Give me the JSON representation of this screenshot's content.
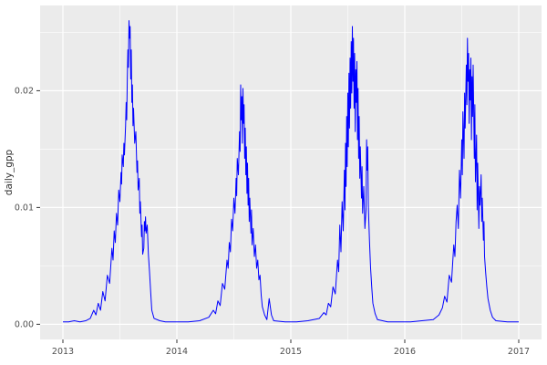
{
  "chart_data": {
    "type": "line",
    "title": "",
    "xlabel": "",
    "ylabel": "daily_gpp",
    "legend": "none",
    "style": "ggplot2",
    "line_color": "#0000FF",
    "panel_bg": "#EBEBEB",
    "grid_major_color": "#FFFFFF",
    "grid_minor_color": "#FFFFFF",
    "axis_text_color": "#4D4D4D",
    "axis_title_color": "#333333",
    "tick_mark_color": "#333333",
    "xlim": [
      2012.8,
      2017.2
    ],
    "ylim": [
      -0.0013,
      0.0273
    ],
    "x_ticks": [
      2013,
      2014,
      2015,
      2016,
      2017
    ],
    "x_tick_labels": [
      "2013",
      "2014",
      "2015",
      "2016",
      "2017"
    ],
    "x_minor": [
      2013.5,
      2014.5,
      2015.5,
      2016.5
    ],
    "y_ticks": [
      0.0,
      0.01,
      0.02
    ],
    "y_tick_labels": [
      "0.00",
      "0.01",
      "0.02"
    ],
    "y_minor": [
      0.005,
      0.015,
      0.025
    ],
    "series": [
      {
        "name": "daily_gpp",
        "points": [
          [
            2013.0,
            0.0002
          ],
          [
            2013.05,
            0.0002
          ],
          [
            2013.1,
            0.0003
          ],
          [
            2013.15,
            0.0002
          ],
          [
            2013.2,
            0.0003
          ],
          [
            2013.24,
            0.0005
          ],
          [
            2013.27,
            0.0012
          ],
          [
            2013.29,
            0.0008
          ],
          [
            2013.31,
            0.0018
          ],
          [
            2013.33,
            0.0012
          ],
          [
            2013.35,
            0.0028
          ],
          [
            2013.37,
            0.002
          ],
          [
            2013.39,
            0.0042
          ],
          [
            2013.41,
            0.0035
          ],
          [
            2013.43,
            0.0065
          ],
          [
            2013.44,
            0.0055
          ],
          [
            2013.45,
            0.008
          ],
          [
            2013.46,
            0.007
          ],
          [
            2013.47,
            0.0095
          ],
          [
            2013.48,
            0.0085
          ],
          [
            2013.49,
            0.0115
          ],
          [
            2013.5,
            0.0105
          ],
          [
            2013.51,
            0.013
          ],
          [
            2013.515,
            0.012
          ],
          [
            2013.52,
            0.0145
          ],
          [
            2013.53,
            0.0135
          ],
          [
            2013.535,
            0.0155
          ],
          [
            2013.54,
            0.0145
          ],
          [
            2013.55,
            0.017
          ],
          [
            2013.555,
            0.019
          ],
          [
            2013.56,
            0.0175
          ],
          [
            2013.565,
            0.021
          ],
          [
            2013.57,
            0.0235
          ],
          [
            2013.575,
            0.022
          ],
          [
            2013.58,
            0.026
          ],
          [
            2013.585,
            0.0245
          ],
          [
            2013.59,
            0.0255
          ],
          [
            2013.595,
            0.021
          ],
          [
            2013.6,
            0.0235
          ],
          [
            2013.605,
            0.019
          ],
          [
            2013.61,
            0.0205
          ],
          [
            2013.615,
            0.017
          ],
          [
            2013.62,
            0.0185
          ],
          [
            2013.63,
            0.0155
          ],
          [
            2013.64,
            0.0165
          ],
          [
            2013.65,
            0.013
          ],
          [
            2013.655,
            0.014
          ],
          [
            2013.66,
            0.0115
          ],
          [
            2013.67,
            0.0125
          ],
          [
            2013.675,
            0.0095
          ],
          [
            2013.68,
            0.0105
          ],
          [
            2013.69,
            0.0075
          ],
          [
            2013.695,
            0.0085
          ],
          [
            2013.7,
            0.006
          ],
          [
            2013.71,
            0.0065
          ],
          [
            2013.715,
            0.0088
          ],
          [
            2013.72,
            0.008
          ],
          [
            2013.725,
            0.0092
          ],
          [
            2013.73,
            0.0078
          ],
          [
            2013.74,
            0.0085
          ],
          [
            2013.75,
            0.006
          ],
          [
            2013.76,
            0.0045
          ],
          [
            2013.77,
            0.0028
          ],
          [
            2013.78,
            0.0012
          ],
          [
            2013.8,
            0.0005
          ],
          [
            2013.85,
            0.0003
          ],
          [
            2013.9,
            0.0002
          ],
          [
            2014.0,
            0.0002
          ],
          [
            2014.1,
            0.0002
          ],
          [
            2014.2,
            0.0003
          ],
          [
            2014.28,
            0.0006
          ],
          [
            2014.32,
            0.0012
          ],
          [
            2014.34,
            0.0009
          ],
          [
            2014.36,
            0.002
          ],
          [
            2014.38,
            0.0016
          ],
          [
            2014.4,
            0.0035
          ],
          [
            2014.42,
            0.003
          ],
          [
            2014.44,
            0.0055
          ],
          [
            2014.45,
            0.0048
          ],
          [
            2014.46,
            0.007
          ],
          [
            2014.47,
            0.0062
          ],
          [
            2014.48,
            0.009
          ],
          [
            2014.49,
            0.008
          ],
          [
            2014.5,
            0.0108
          ],
          [
            2014.51,
            0.0095
          ],
          [
            2014.52,
            0.0125
          ],
          [
            2014.525,
            0.011
          ],
          [
            2014.53,
            0.0142
          ],
          [
            2014.54,
            0.0128
          ],
          [
            2014.55,
            0.0165
          ],
          [
            2014.555,
            0.0148
          ],
          [
            2014.56,
            0.0205
          ],
          [
            2014.565,
            0.0175
          ],
          [
            2014.57,
            0.0195
          ],
          [
            2014.575,
            0.0155
          ],
          [
            2014.58,
            0.0202
          ],
          [
            2014.585,
            0.0172
          ],
          [
            2014.59,
            0.0188
          ],
          [
            2014.595,
            0.0142
          ],
          [
            2014.6,
            0.0168
          ],
          [
            2014.605,
            0.0128
          ],
          [
            2014.61,
            0.0152
          ],
          [
            2014.615,
            0.0112
          ],
          [
            2014.62,
            0.0138
          ],
          [
            2014.625,
            0.0102
          ],
          [
            2014.63,
            0.0125
          ],
          [
            2014.635,
            0.0088
          ],
          [
            2014.64,
            0.0108
          ],
          [
            2014.65,
            0.0078
          ],
          [
            2014.655,
            0.0098
          ],
          [
            2014.66,
            0.0068
          ],
          [
            2014.67,
            0.0082
          ],
          [
            2014.68,
            0.0058
          ],
          [
            2014.69,
            0.0068
          ],
          [
            2014.7,
            0.0048
          ],
          [
            2014.71,
            0.0055
          ],
          [
            2014.72,
            0.0038
          ],
          [
            2014.73,
            0.0042
          ],
          [
            2014.74,
            0.0025
          ],
          [
            2014.75,
            0.0015
          ],
          [
            2014.77,
            0.0008
          ],
          [
            2014.79,
            0.0004
          ],
          [
            2014.81,
            0.0022
          ],
          [
            2014.83,
            0.0008
          ],
          [
            2014.85,
            0.0003
          ],
          [
            2014.95,
            0.0002
          ],
          [
            2015.05,
            0.0002
          ],
          [
            2015.15,
            0.0003
          ],
          [
            2015.25,
            0.0005
          ],
          [
            2015.29,
            0.001
          ],
          [
            2015.31,
            0.0008
          ],
          [
            2015.33,
            0.0018
          ],
          [
            2015.35,
            0.0015
          ],
          [
            2015.37,
            0.0032
          ],
          [
            2015.39,
            0.0026
          ],
          [
            2015.41,
            0.0055
          ],
          [
            2015.42,
            0.0045
          ],
          [
            2015.43,
            0.0085
          ],
          [
            2015.44,
            0.0062
          ],
          [
            2015.45,
            0.0105
          ],
          [
            2015.46,
            0.008
          ],
          [
            2015.47,
            0.0132
          ],
          [
            2015.475,
            0.0098
          ],
          [
            2015.48,
            0.0155
          ],
          [
            2015.485,
            0.0118
          ],
          [
            2015.49,
            0.0178
          ],
          [
            2015.495,
            0.0135
          ],
          [
            2015.5,
            0.0198
          ],
          [
            2015.505,
            0.0152
          ],
          [
            2015.51,
            0.0215
          ],
          [
            2015.515,
            0.0168
          ],
          [
            2015.52,
            0.0228
          ],
          [
            2015.525,
            0.0185
          ],
          [
            2015.53,
            0.0242
          ],
          [
            2015.535,
            0.0198
          ],
          [
            2015.54,
            0.0255
          ],
          [
            2015.545,
            0.0208
          ],
          [
            2015.55,
            0.0245
          ],
          [
            2015.555,
            0.0185
          ],
          [
            2015.56,
            0.0232
          ],
          [
            2015.565,
            0.0165
          ],
          [
            2015.57,
            0.0218
          ],
          [
            2015.575,
            0.019
          ],
          [
            2015.58,
            0.0225
          ],
          [
            2015.585,
            0.0158
          ],
          [
            2015.59,
            0.0202
          ],
          [
            2015.595,
            0.0142
          ],
          [
            2015.6,
            0.0178
          ],
          [
            2015.605,
            0.0125
          ],
          [
            2015.61,
            0.0152
          ],
          [
            2015.62,
            0.0108
          ],
          [
            2015.625,
            0.0135
          ],
          [
            2015.63,
            0.0095
          ],
          [
            2015.64,
            0.0118
          ],
          [
            2015.65,
            0.0082
          ],
          [
            2015.66,
            0.0098
          ],
          [
            2015.665,
            0.0158
          ],
          [
            2015.67,
            0.0132
          ],
          [
            2015.675,
            0.0152
          ],
          [
            2015.68,
            0.0102
          ],
          [
            2015.69,
            0.0072
          ],
          [
            2015.7,
            0.0048
          ],
          [
            2015.71,
            0.0032
          ],
          [
            2015.72,
            0.0018
          ],
          [
            2015.74,
            0.0009
          ],
          [
            2015.76,
            0.0004
          ],
          [
            2015.85,
            0.0002
          ],
          [
            2015.95,
            0.0002
          ],
          [
            2016.05,
            0.0002
          ],
          [
            2016.15,
            0.0003
          ],
          [
            2016.25,
            0.0004
          ],
          [
            2016.3,
            0.0008
          ],
          [
            2016.33,
            0.0014
          ],
          [
            2016.35,
            0.0024
          ],
          [
            2016.37,
            0.0019
          ],
          [
            2016.39,
            0.0042
          ],
          [
            2016.41,
            0.0036
          ],
          [
            2016.43,
            0.0068
          ],
          [
            2016.44,
            0.0058
          ],
          [
            2016.45,
            0.0088
          ],
          [
            2016.46,
            0.0102
          ],
          [
            2016.47,
            0.0082
          ],
          [
            2016.48,
            0.0132
          ],
          [
            2016.49,
            0.0108
          ],
          [
            2016.5,
            0.0158
          ],
          [
            2016.505,
            0.0128
          ],
          [
            2016.51,
            0.0182
          ],
          [
            2016.52,
            0.0142
          ],
          [
            2016.525,
            0.0198
          ],
          [
            2016.53,
            0.0168
          ],
          [
            2016.54,
            0.0222
          ],
          [
            2016.545,
            0.0188
          ],
          [
            2016.55,
            0.0245
          ],
          [
            2016.555,
            0.0208
          ],
          [
            2016.56,
            0.0232
          ],
          [
            2016.565,
            0.0172
          ],
          [
            2016.57,
            0.0218
          ],
          [
            2016.575,
            0.0192
          ],
          [
            2016.58,
            0.0228
          ],
          [
            2016.585,
            0.0158
          ],
          [
            2016.59,
            0.0212
          ],
          [
            2016.595,
            0.0178
          ],
          [
            2016.6,
            0.0222
          ],
          [
            2016.61,
            0.0142
          ],
          [
            2016.615,
            0.0188
          ],
          [
            2016.62,
            0.0122
          ],
          [
            2016.63,
            0.0162
          ],
          [
            2016.635,
            0.0098
          ],
          [
            2016.64,
            0.0138
          ],
          [
            2016.65,
            0.0082
          ],
          [
            2016.655,
            0.0118
          ],
          [
            2016.66,
            0.0102
          ],
          [
            2016.67,
            0.0128
          ],
          [
            2016.675,
            0.0088
          ],
          [
            2016.68,
            0.0108
          ],
          [
            2016.69,
            0.0072
          ],
          [
            2016.695,
            0.0088
          ],
          [
            2016.7,
            0.0058
          ],
          [
            2016.71,
            0.0044
          ],
          [
            2016.72,
            0.0032
          ],
          [
            2016.73,
            0.0022
          ],
          [
            2016.75,
            0.0012
          ],
          [
            2016.77,
            0.0006
          ],
          [
            2016.8,
            0.0003
          ],
          [
            2016.9,
            0.0002
          ],
          [
            2017.0,
            0.0002
          ]
        ]
      }
    ]
  }
}
